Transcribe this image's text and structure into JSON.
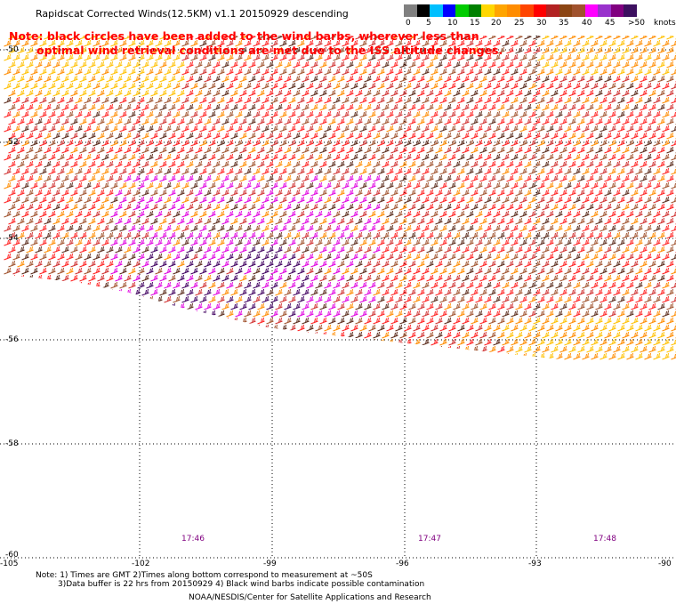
{
  "title": "Rapidscat Corrected Winds(12.5KM) v1.1 20150929 descending",
  "notes": {
    "line1": "Note: black circles have been added to the wind barbs, wherever less than",
    "line2": "optimal wind retrieval conditions are met due to the ISS altitude changes."
  },
  "legend": {
    "colors": [
      "#808080",
      "#000000",
      "#00bfff",
      "#0000ff",
      "#00cc00",
      "#008000",
      "#ffd700",
      "#ffa500",
      "#ff8c00",
      "#ff4500",
      "#ff0000",
      "#b22222",
      "#8b4513",
      "#a0522d",
      "#ff00ff",
      "#9932cc",
      "#800080",
      "#3d1060"
    ],
    "labels": [
      "0",
      "5",
      "10",
      "15",
      "20",
      "25",
      "30",
      "35",
      "40",
      "45",
      ">50"
    ],
    "units": "knots"
  },
  "axes": {
    "y_labels": [
      "-50",
      "-52",
      "-54",
      "-56",
      "-58",
      "-60"
    ],
    "x_labels": [
      "-105",
      "-102",
      "-99",
      "-96",
      "-93",
      "-90"
    ]
  },
  "times": [
    "17:46",
    "17:47",
    "17:48"
  ],
  "footnotes": {
    "line1": "Note: 1) Times are GMT 2)Times along bottom correspond to measurement at ~50S",
    "line2": "3)Data buffer is 22 hrs from 20150929 4) Black wind barbs indicate possible contamination",
    "line3": "NOAA/NESDIS/Center for Satellite Applications and Research"
  }
}
